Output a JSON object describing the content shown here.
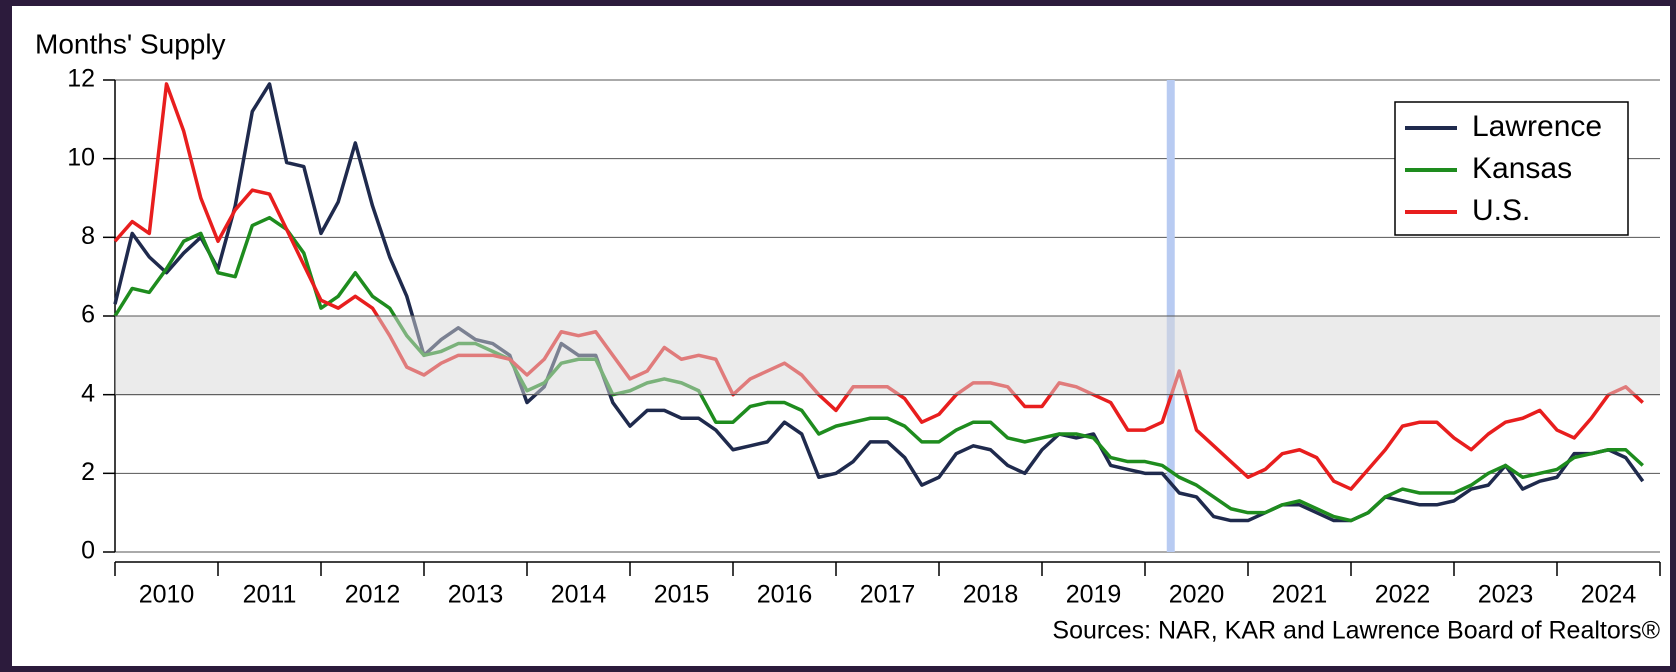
{
  "chart_data": {
    "type": "line",
    "y_axis_label": "Months' Supply",
    "source": "Sources: NAR, KAR and Lawrence Board of Realtors®",
    "xlim": [
      2010,
      2025
    ],
    "xticks": [
      2010,
      2011,
      2012,
      2013,
      2014,
      2015,
      2016,
      2017,
      2018,
      2019,
      2020,
      2021,
      2022,
      2023,
      2024,
      2025
    ],
    "x_tick_labels": [
      {
        "value": 2010.5,
        "label": "2010"
      },
      {
        "value": 2011.5,
        "label": "2011"
      },
      {
        "value": 2012.5,
        "label": "2012"
      },
      {
        "value": 2013.5,
        "label": "2013"
      },
      {
        "value": 2014.5,
        "label": "2014"
      },
      {
        "value": 2015.5,
        "label": "2015"
      },
      {
        "value": 2016.5,
        "label": "2016"
      },
      {
        "value": 2017.5,
        "label": "2017"
      },
      {
        "value": 2018.5,
        "label": "2018"
      },
      {
        "value": 2019.5,
        "label": "2019"
      },
      {
        "value": 2020.5,
        "label": "2020"
      },
      {
        "value": 2021.5,
        "label": "2021"
      },
      {
        "value": 2022.5,
        "label": "2022"
      },
      {
        "value": 2023.5,
        "label": "2023"
      },
      {
        "value": 2024.5,
        "label": "2024"
      }
    ],
    "ylim": [
      0,
      12
    ],
    "yticks": [
      0,
      2,
      4,
      6,
      8,
      10,
      12
    ],
    "grid": true,
    "shaded_band": [
      4,
      6
    ],
    "vertical_marker": 2020.25,
    "legend": "upper right",
    "x": [
      2010,
      2010.167,
      2010.333,
      2010.5,
      2010.667,
      2010.833,
      2011,
      2011.167,
      2011.333,
      2011.5,
      2011.667,
      2011.833,
      2012,
      2012.167,
      2012.333,
      2012.5,
      2012.667,
      2012.833,
      2013,
      2013.167,
      2013.333,
      2013.5,
      2013.667,
      2013.833,
      2014,
      2014.167,
      2014.333,
      2014.5,
      2014.667,
      2014.833,
      2015,
      2015.167,
      2015.333,
      2015.5,
      2015.667,
      2015.833,
      2016,
      2016.167,
      2016.333,
      2016.5,
      2016.667,
      2016.833,
      2017,
      2017.167,
      2017.333,
      2017.5,
      2017.667,
      2017.833,
      2018,
      2018.167,
      2018.333,
      2018.5,
      2018.667,
      2018.833,
      2019,
      2019.167,
      2019.333,
      2019.5,
      2019.667,
      2019.833,
      2020,
      2020.167,
      2020.333,
      2020.5,
      2020.667,
      2020.833,
      2021,
      2021.167,
      2021.333,
      2021.5,
      2021.667,
      2021.833,
      2022,
      2022.167,
      2022.333,
      2022.5,
      2022.667,
      2022.833,
      2023,
      2023.167,
      2023.333,
      2023.5,
      2023.667,
      2023.833,
      2024,
      2024.167,
      2024.333,
      2024.5,
      2024.667,
      2024.833
    ],
    "series": [
      {
        "name": "Lawrence",
        "color": "#1f2a4d",
        "values": [
          6.3,
          8.1,
          7.5,
          7.1,
          7.6,
          8.0,
          7.2,
          8.8,
          11.2,
          11.9,
          9.9,
          9.8,
          8.1,
          8.9,
          10.4,
          8.8,
          7.5,
          6.5,
          5.0,
          5.4,
          5.7,
          5.4,
          5.3,
          5.0,
          3.8,
          4.2,
          5.3,
          5.0,
          5.0,
          3.8,
          3.2,
          3.6,
          3.6,
          3.4,
          3.4,
          3.1,
          2.6,
          2.7,
          2.8,
          3.3,
          3.0,
          1.9,
          2.0,
          2.3,
          2.8,
          2.8,
          2.4,
          1.7,
          1.9,
          2.5,
          2.7,
          2.6,
          2.2,
          2.0,
          2.6,
          3.0,
          2.9,
          3.0,
          2.2,
          2.1,
          2.0,
          2.0,
          1.5,
          1.4,
          0.9,
          0.8,
          0.8,
          1.0,
          1.2,
          1.2,
          1.0,
          0.8,
          0.8,
          1.0,
          1.4,
          1.3,
          1.2,
          1.2,
          1.3,
          1.6,
          1.7,
          2.2,
          1.6,
          1.8,
          1.9,
          2.5,
          2.5,
          2.6,
          2.4,
          1.8
        ]
      },
      {
        "name": "Kansas",
        "color": "#1e8c1e",
        "values": [
          6.0,
          6.7,
          6.6,
          7.2,
          7.9,
          8.1,
          7.1,
          7.0,
          8.3,
          8.5,
          8.2,
          7.6,
          6.2,
          6.5,
          7.1,
          6.5,
          6.2,
          5.5,
          5.0,
          5.1,
          5.3,
          5.3,
          5.1,
          4.9,
          4.1,
          4.3,
          4.8,
          4.9,
          4.9,
          4.0,
          4.1,
          4.3,
          4.4,
          4.3,
          4.1,
          3.3,
          3.3,
          3.7,
          3.8,
          3.8,
          3.6,
          3.0,
          3.2,
          3.3,
          3.4,
          3.4,
          3.2,
          2.8,
          2.8,
          3.1,
          3.3,
          3.3,
          2.9,
          2.8,
          2.9,
          3.0,
          3.0,
          2.9,
          2.4,
          2.3,
          2.3,
          2.2,
          1.9,
          1.7,
          1.4,
          1.1,
          1.0,
          1.0,
          1.2,
          1.3,
          1.1,
          0.9,
          0.8,
          1.0,
          1.4,
          1.6,
          1.5,
          1.5,
          1.5,
          1.7,
          2.0,
          2.2,
          1.9,
          2.0,
          2.1,
          2.4,
          2.5,
          2.6,
          2.6,
          2.2
        ]
      },
      {
        "name": "U.S.",
        "color": "#e81e1e",
        "values": [
          7.9,
          8.4,
          8.1,
          11.9,
          10.7,
          9.0,
          7.9,
          8.7,
          9.2,
          9.1,
          8.2,
          7.3,
          6.4,
          6.2,
          6.5,
          6.2,
          5.5,
          4.7,
          4.5,
          4.8,
          5.0,
          5.0,
          5.0,
          4.9,
          4.5,
          4.9,
          5.6,
          5.5,
          5.6,
          5.0,
          4.4,
          4.6,
          5.2,
          4.9,
          5.0,
          4.9,
          4.0,
          4.4,
          4.6,
          4.8,
          4.5,
          4.0,
          3.6,
          4.2,
          4.2,
          4.2,
          3.9,
          3.3,
          3.5,
          4.0,
          4.3,
          4.3,
          4.2,
          3.7,
          3.7,
          4.3,
          4.2,
          4.0,
          3.8,
          3.1,
          3.1,
          3.3,
          4.6,
          3.1,
          2.7,
          2.3,
          1.9,
          2.1,
          2.5,
          2.6,
          2.4,
          1.8,
          1.6,
          2.1,
          2.6,
          3.2,
          3.3,
          3.3,
          2.9,
          2.6,
          3.0,
          3.3,
          3.4,
          3.6,
          3.1,
          2.9,
          3.4,
          4.0,
          4.2,
          3.8
        ]
      }
    ]
  }
}
